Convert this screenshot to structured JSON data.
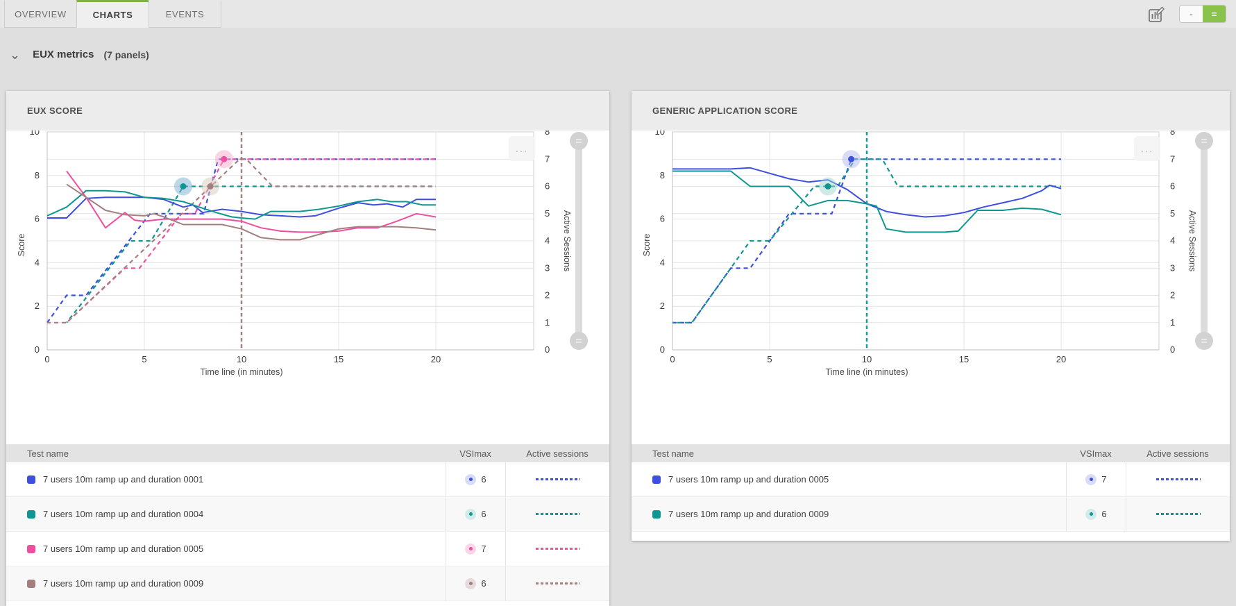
{
  "icons": {
    "ellipsis": "...",
    "chevron_down": "⌄",
    "chart_edit": "chart-edit-icon"
  },
  "tabs": {
    "items": [
      {
        "label": "OVERVIEW",
        "active": false
      },
      {
        "label": "CHARTS",
        "active": true
      },
      {
        "label": "EVENTS",
        "active": false
      }
    ]
  },
  "toolbar": {
    "accent_green": "#8bc34a",
    "layout_toggle": {
      "left_label": "-",
      "right_label": "=",
      "active": "right"
    }
  },
  "section": {
    "title": "EUX metrics",
    "panel_count_label": "(7 panels)"
  },
  "chart_data": [
    {
      "type": "line",
      "title": "EUX SCORE",
      "xlabel": "Time line (in minutes)",
      "ylabel": "Score",
      "y2label": "Active Sessions",
      "xlim": [
        0,
        20
      ],
      "ylim": [
        0,
        10
      ],
      "y2lim": [
        0,
        8
      ],
      "x_ticks": [
        0,
        5,
        10,
        15,
        20
      ],
      "y_ticks": [
        0,
        2,
        4,
        6,
        8,
        10
      ],
      "y2_ticks": [
        0,
        1,
        2,
        3,
        4,
        5,
        6,
        7,
        8
      ],
      "grid": true,
      "legend_position": "table-below",
      "vline": {
        "x": 10,
        "color": "#a3807f"
      },
      "score_series": [
        {
          "name": "7 users 10m ramp up and duration 0001",
          "color": "#3d4fe0",
          "points": [
            [
              0,
              6.05
            ],
            [
              1,
              6.05
            ],
            [
              2,
              6.95
            ],
            [
              3,
              7.0
            ],
            [
              4,
              7.0
            ],
            [
              5,
              7.0
            ],
            [
              6,
              6.9
            ],
            [
              7,
              6.55
            ],
            [
              7.5,
              6.65
            ],
            [
              8,
              6.3
            ],
            [
              9,
              6.45
            ],
            [
              10,
              6.35
            ],
            [
              11,
              6.2
            ],
            [
              12,
              6.15
            ],
            [
              13,
              6.1
            ],
            [
              13.8,
              6.15
            ],
            [
              15,
              6.5
            ],
            [
              16,
              6.75
            ],
            [
              16.8,
              6.65
            ],
            [
              17.5,
              6.7
            ],
            [
              18.3,
              6.55
            ],
            [
              19,
              6.9
            ],
            [
              20,
              6.9
            ]
          ]
        },
        {
          "name": "7 users 10m ramp up and duration 0004",
          "color": "#0f9690",
          "points": [
            [
              0,
              6.15
            ],
            [
              1,
              6.55
            ],
            [
              2,
              7.3
            ],
            [
              3,
              7.3
            ],
            [
              4,
              7.25
            ],
            [
              5,
              7.0
            ],
            [
              6,
              6.95
            ],
            [
              7,
              6.8
            ],
            [
              8,
              6.5
            ],
            [
              8.7,
              6.3
            ],
            [
              9.5,
              6.1
            ],
            [
              10,
              6.05
            ],
            [
              10.7,
              6.0
            ],
            [
              11.5,
              6.35
            ],
            [
              13,
              6.35
            ],
            [
              14,
              6.45
            ],
            [
              15,
              6.6
            ],
            [
              16,
              6.8
            ],
            [
              17,
              6.9
            ],
            [
              17.7,
              6.8
            ],
            [
              18.5,
              6.8
            ],
            [
              19.3,
              6.65
            ],
            [
              20,
              6.65
            ]
          ]
        },
        {
          "name": "7 users 10m ramp up and duration 0005",
          "color": "#ef4f9f",
          "points": [
            [
              1,
              8.2
            ],
            [
              2,
              7.0
            ],
            [
              3,
              5.6
            ],
            [
              4,
              6.3
            ],
            [
              4.5,
              5.95
            ],
            [
              5,
              5.9
            ],
            [
              6,
              6.0
            ],
            [
              7,
              6.0
            ],
            [
              8,
              6.0
            ],
            [
              9,
              6.0
            ],
            [
              10,
              5.9
            ],
            [
              11,
              5.6
            ],
            [
              12,
              5.45
            ],
            [
              13,
              5.4
            ],
            [
              14,
              5.4
            ],
            [
              15,
              5.45
            ],
            [
              16,
              5.6
            ],
            [
              17,
              5.6
            ],
            [
              18,
              5.9
            ],
            [
              19,
              6.25
            ],
            [
              20,
              6.1
            ]
          ]
        },
        {
          "name": "7 users 10m ramp up and duration 0009",
          "color": "#a3807f",
          "points": [
            [
              1,
              7.6
            ],
            [
              2,
              7.0
            ],
            [
              3,
              6.4
            ],
            [
              4,
              6.2
            ],
            [
              5,
              6.15
            ],
            [
              5.5,
              6.25
            ],
            [
              6,
              6.1
            ],
            [
              7,
              5.75
            ],
            [
              8,
              5.75
            ],
            [
              9,
              5.75
            ],
            [
              10,
              5.55
            ],
            [
              11,
              5.15
            ],
            [
              12,
              5.05
            ],
            [
              13,
              5.05
            ],
            [
              14,
              5.3
            ],
            [
              15,
              5.55
            ],
            [
              16,
              5.65
            ],
            [
              17,
              5.65
            ],
            [
              18,
              5.65
            ],
            [
              19,
              5.6
            ],
            [
              20,
              5.5
            ]
          ]
        }
      ],
      "session_series": [
        {
          "name": "7 users 10m ramp up and duration 0001",
          "color": "#3d4fe0",
          "points": [
            [
              0,
              1
            ],
            [
              1,
              2
            ],
            [
              2,
              2
            ],
            [
              5.3,
              5
            ],
            [
              8.05,
              5
            ],
            [
              8.8,
              7
            ],
            [
              20,
              7
            ]
          ]
        },
        {
          "name": "7 users 10m ramp up and duration 0004",
          "color": "#0f9690",
          "points": [
            [
              1,
              1
            ],
            [
              4.3,
              4
            ],
            [
              5.35,
              4
            ],
            [
              7,
              6
            ],
            [
              20,
              6
            ]
          ]
        },
        {
          "name": "7 users 10m ramp up and duration 0005",
          "color": "#ef4f9f",
          "points": [
            [
              1,
              1
            ],
            [
              4,
              3
            ],
            [
              4.75,
              3
            ],
            [
              6.9,
              5
            ],
            [
              7.6,
              5
            ],
            [
              9.1,
              7
            ],
            [
              20,
              7
            ]
          ]
        },
        {
          "name": "7 users 10m ramp up and duration 0009",
          "color": "#a3807f",
          "points": [
            [
              0,
              1
            ],
            [
              1,
              1
            ],
            [
              9.9,
              7
            ],
            [
              10.25,
              7
            ],
            [
              11.6,
              6
            ],
            [
              20,
              6
            ]
          ]
        }
      ],
      "markers": [
        {
          "x": 7,
          "session": 6,
          "halo": "#7bafd4",
          "dot": "#0f9690"
        },
        {
          "x": 8.4,
          "session": 6,
          "halo": "#d9cbbd",
          "dot": "#a3807f"
        },
        {
          "x": 9.1,
          "session": 7,
          "halo": "#f6a8cb",
          "dot": "#ef4f9f"
        }
      ],
      "table": {
        "headers": [
          "Test name",
          "VSImax",
          "Active sessions"
        ],
        "rows": [
          {
            "name": "7 users 10m ramp up and duration 0001",
            "color": "#3d4fe0",
            "badge_bg": "#d9dcf8",
            "vsimax": 6
          },
          {
            "name": "7 users 10m ramp up and duration 0004",
            "color": "#0f9690",
            "badge_bg": "#d0ebe9",
            "vsimax": 6
          },
          {
            "name": "7 users 10m ramp up and duration 0005",
            "color": "#ef4f9f",
            "badge_bg": "#fbd6e8",
            "vsimax": 7
          },
          {
            "name": "7 users 10m ramp up and duration 0009",
            "color": "#a3807f",
            "badge_bg": "#e6dbda",
            "vsimax": 6
          }
        ]
      }
    },
    {
      "type": "line",
      "title": "GENERIC APPLICATION SCORE",
      "xlabel": "Time line (in minutes)",
      "ylabel": "Score",
      "y2label": "Active Sessions",
      "xlim": [
        0,
        20
      ],
      "ylim": [
        0,
        10
      ],
      "y2lim": [
        0,
        8
      ],
      "x_ticks": [
        0,
        5,
        10,
        15,
        20
      ],
      "y_ticks": [
        0,
        2,
        4,
        6,
        8,
        10
      ],
      "y2_ticks": [
        0,
        1,
        2,
        3,
        4,
        5,
        6,
        7,
        8
      ],
      "grid": true,
      "legend_position": "table-below",
      "vline": {
        "x": 10,
        "color": "#1a9c94"
      },
      "score_series": [
        {
          "name": "7 users 10m ramp up and duration 0005",
          "color": "#3d4fe0",
          "points": [
            [
              0,
              8.3
            ],
            [
              1,
              8.3
            ],
            [
              2,
              8.3
            ],
            [
              3,
              8.3
            ],
            [
              4,
              8.35
            ],
            [
              5,
              8.1
            ],
            [
              6,
              7.85
            ],
            [
              7,
              7.7
            ],
            [
              8,
              7.8
            ],
            [
              9,
              7.35
            ],
            [
              10,
              6.7
            ],
            [
              11,
              6.35
            ],
            [
              12,
              6.2
            ],
            [
              13,
              6.1
            ],
            [
              14,
              6.15
            ],
            [
              15,
              6.3
            ],
            [
              16,
              6.55
            ],
            [
              17,
              6.75
            ],
            [
              18,
              6.95
            ],
            [
              19,
              7.3
            ],
            [
              19.4,
              7.55
            ],
            [
              20,
              7.4
            ]
          ]
        },
        {
          "name": "7 users 10m ramp up and duration 0009",
          "color": "#0f9690",
          "points": [
            [
              0,
              8.2
            ],
            [
              1,
              8.2
            ],
            [
              2,
              8.2
            ],
            [
              3,
              8.2
            ],
            [
              4,
              7.5
            ],
            [
              5,
              7.5
            ],
            [
              6,
              7.5
            ],
            [
              7,
              6.6
            ],
            [
              8,
              6.85
            ],
            [
              9,
              6.85
            ],
            [
              10,
              6.7
            ],
            [
              10.5,
              6.6
            ],
            [
              11,
              5.55
            ],
            [
              12,
              5.4
            ],
            [
              13,
              5.4
            ],
            [
              14,
              5.4
            ],
            [
              14.7,
              5.45
            ],
            [
              15.7,
              6.4
            ],
            [
              17,
              6.4
            ],
            [
              18,
              6.5
            ],
            [
              19,
              6.45
            ],
            [
              20,
              6.2
            ]
          ]
        }
      ],
      "session_series": [
        {
          "name": "7 users 10m ramp up and duration 0005",
          "color": "#3d4fe0",
          "points": [
            [
              0,
              1
            ],
            [
              1,
              1
            ],
            [
              3,
              3
            ],
            [
              4,
              3
            ],
            [
              6,
              5
            ],
            [
              8.2,
              5
            ],
            [
              9.2,
              7
            ],
            [
              20,
              7
            ]
          ]
        },
        {
          "name": "7 users 10m ramp up and duration 0009",
          "color": "#0f9690",
          "points": [
            [
              0,
              1
            ],
            [
              1,
              1
            ],
            [
              4,
              4
            ],
            [
              5,
              4
            ],
            [
              7.3,
              6
            ],
            [
              8.5,
              6
            ],
            [
              9.4,
              7
            ],
            [
              10.8,
              7
            ],
            [
              11.6,
              6
            ],
            [
              20,
              6
            ]
          ]
        }
      ],
      "markers": [
        {
          "x": 8,
          "session": 6,
          "halo": "#9fd6cf",
          "dot": "#0f9690"
        },
        {
          "x": 9.2,
          "session": 7,
          "halo": "#b4b9ee",
          "dot": "#3d4fe0"
        }
      ],
      "table": {
        "headers": [
          "Test name",
          "VSImax",
          "Active sessions"
        ],
        "rows": [
          {
            "name": "7 users 10m ramp up and duration 0005",
            "color": "#3d4fe0",
            "badge_bg": "#d9dcf8",
            "vsimax": 7
          },
          {
            "name": "7 users 10m ramp up and duration 0009",
            "color": "#0f9690",
            "badge_bg": "#d0ebe9",
            "vsimax": 6
          }
        ]
      }
    }
  ]
}
